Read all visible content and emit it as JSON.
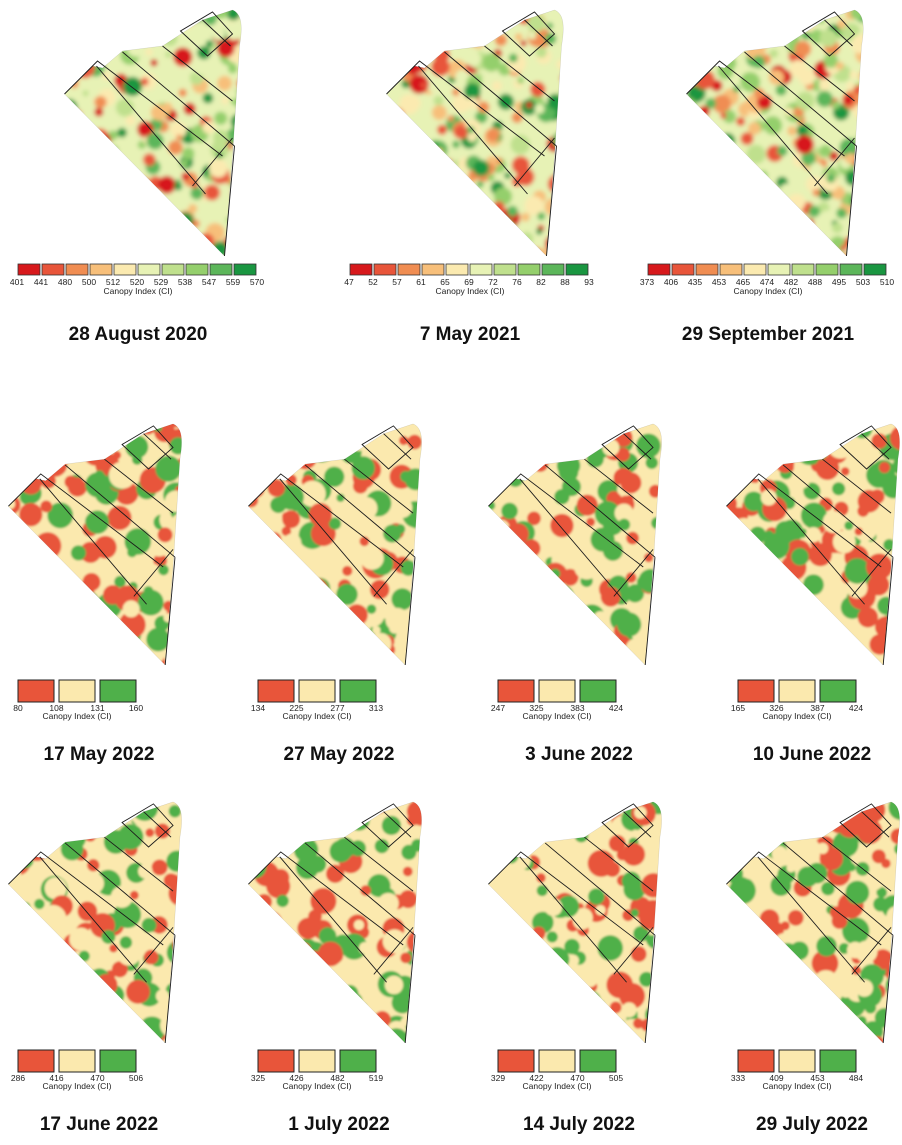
{
  "colors": {
    "continuous_ramp": [
      "#d7191c",
      "#e8553a",
      "#f08d52",
      "#f7bf7a",
      "#fbeab0",
      "#e7f2b5",
      "#bfe08d",
      "#94cf6c",
      "#5cb65a",
      "#1a9641"
    ],
    "class_low": "#e8553a",
    "class_mid": "#fbe9ae",
    "class_high": "#4fb04a",
    "zone_outline": "#1a1a1a"
  },
  "legend_title": "Canopy Index (CI)",
  "maps": [
    {
      "date": "28 August 2020",
      "legend_type": "continuous",
      "legend_ticks": [
        "401",
        "441",
        "480",
        "500",
        "512",
        "520",
        "529",
        "538",
        "547",
        "559",
        "570"
      ]
    },
    {
      "date": "7 May 2021",
      "legend_type": "continuous",
      "legend_ticks": [
        "47",
        "52",
        "57",
        "61",
        "65",
        "69",
        "72",
        "76",
        "82",
        "88",
        "93"
      ]
    },
    {
      "date": "29 September 2021",
      "legend_type": "continuous",
      "legend_ticks": [
        "373",
        "406",
        "435",
        "453",
        "465",
        "474",
        "482",
        "488",
        "495",
        "503",
        "510"
      ]
    },
    {
      "date": "17 May 2022",
      "legend_type": "classes",
      "legend_ticks": [
        "80",
        "108",
        "131",
        "160"
      ]
    },
    {
      "date": "27 May 2022",
      "legend_type": "classes",
      "legend_ticks": [
        "134",
        "225",
        "277",
        "313"
      ]
    },
    {
      "date": "3 June 2022",
      "legend_type": "classes",
      "legend_ticks": [
        "247",
        "325",
        "383",
        "424"
      ]
    },
    {
      "date": "10 June 2022",
      "legend_type": "classes",
      "legend_ticks": [
        "165",
        "326",
        "387",
        "424"
      ]
    },
    {
      "date": "17 June 2022",
      "legend_type": "classes",
      "legend_ticks": [
        "286",
        "416",
        "470",
        "506"
      ]
    },
    {
      "date": "1 July 2022",
      "legend_type": "classes",
      "legend_ticks": [
        "325",
        "426",
        "482",
        "519"
      ]
    },
    {
      "date": "14 July 2022",
      "legend_type": "classes",
      "legend_ticks": [
        "329",
        "422",
        "470",
        "505"
      ]
    },
    {
      "date": "29 July 2022",
      "legend_type": "classes",
      "legend_ticks": [
        "333",
        "409",
        "453",
        "484"
      ]
    }
  ]
}
